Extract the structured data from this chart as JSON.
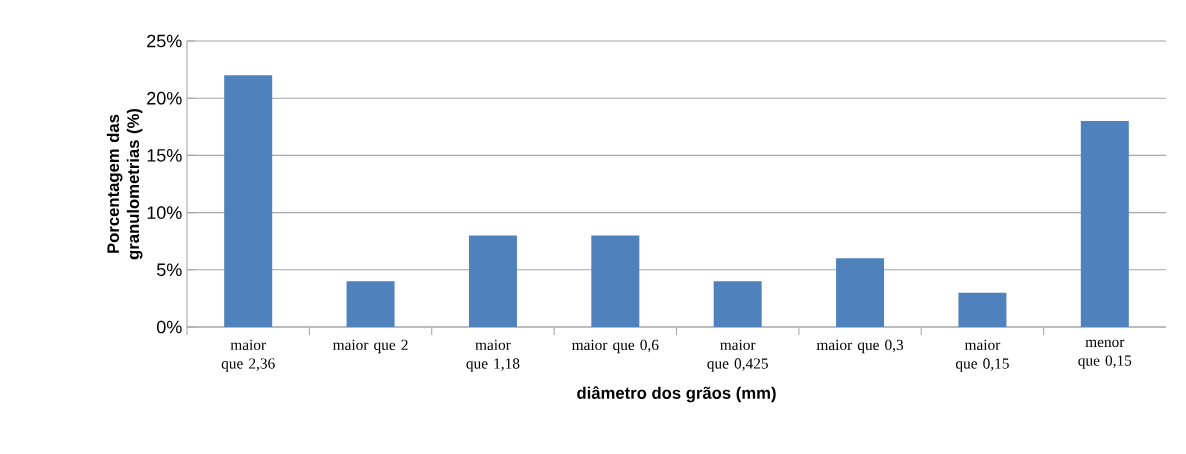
{
  "chart_data": {
    "type": "bar",
    "xlabel": "diâmetro dos grãos (mm)",
    "ylabel": "Porcentagem das granulometrias (%)",
    "categories": [
      "maior que 2,36",
      "maior que 2",
      "maior que 1,18",
      "maior que 0,6",
      "maior que 0,425",
      "maior que 0,3",
      "maior que 0,15",
      "menor que 0,15"
    ],
    "values": [
      22,
      4,
      8,
      8,
      4,
      6,
      3,
      18
    ],
    "color": "#4f81bd",
    "ylim": [
      0,
      25
    ],
    "yticks": [
      {
        "value": 0,
        "label": "0%"
      },
      {
        "value": 5,
        "label": "5%"
      },
      {
        "value": 10,
        "label": "10%"
      },
      {
        "value": 15,
        "label": "15%"
      },
      {
        "value": 20,
        "label": "20%"
      },
      {
        "value": 25,
        "label": "25%"
      }
    ],
    "grid": "y"
  }
}
